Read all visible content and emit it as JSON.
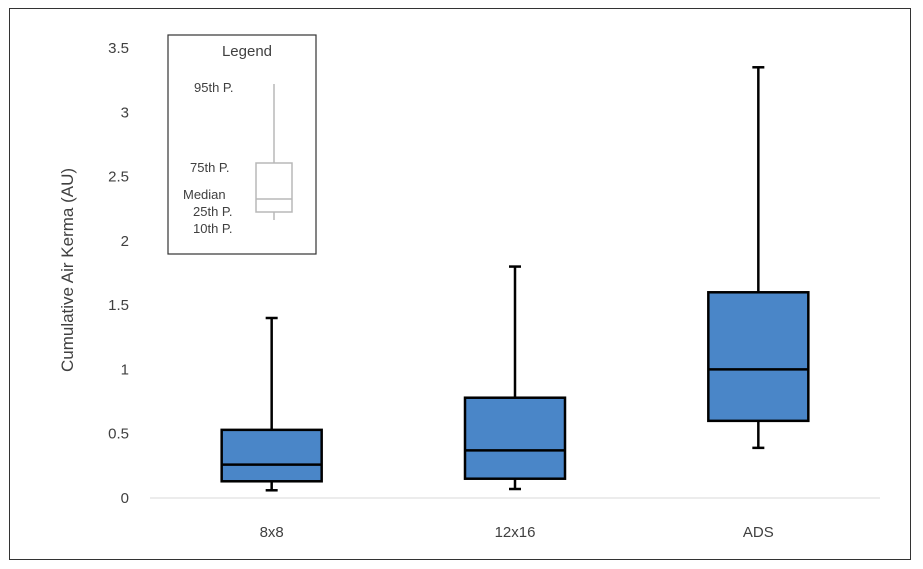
{
  "chart_data": {
    "type": "box",
    "title": "",
    "xlabel": "",
    "ylabel": "Cumulative Air Kerma (AU)",
    "ylim": [
      0,
      3.5
    ],
    "yticks": [
      0,
      0.5,
      1,
      1.5,
      2,
      2.5,
      3,
      3.5
    ],
    "ytick_labels": [
      "0",
      "0.5",
      "1",
      "1.5",
      "2",
      "2.5",
      "3",
      "3.5"
    ],
    "categories": [
      "8x8",
      "12x16",
      "ADS"
    ],
    "box_color": "#4a86c8",
    "series": [
      {
        "category": "8x8",
        "p10": 0.06,
        "p25": 0.13,
        "median": 0.26,
        "p75": 0.53,
        "p95": 1.4
      },
      {
        "category": "12x16",
        "p10": 0.07,
        "p25": 0.15,
        "median": 0.37,
        "p75": 0.78,
        "p95": 1.8
      },
      {
        "category": "ADS",
        "p10": 0.39,
        "p25": 0.6,
        "median": 1.0,
        "p75": 1.6,
        "p95": 3.35
      }
    ],
    "grid": false,
    "legend": {
      "title": "Legend",
      "placement": "top-left",
      "labels": {
        "p95": "95th P.",
        "p75": "75th P.",
        "median": "Median",
        "p25": "25th P.",
        "p10": "10th P."
      }
    }
  }
}
